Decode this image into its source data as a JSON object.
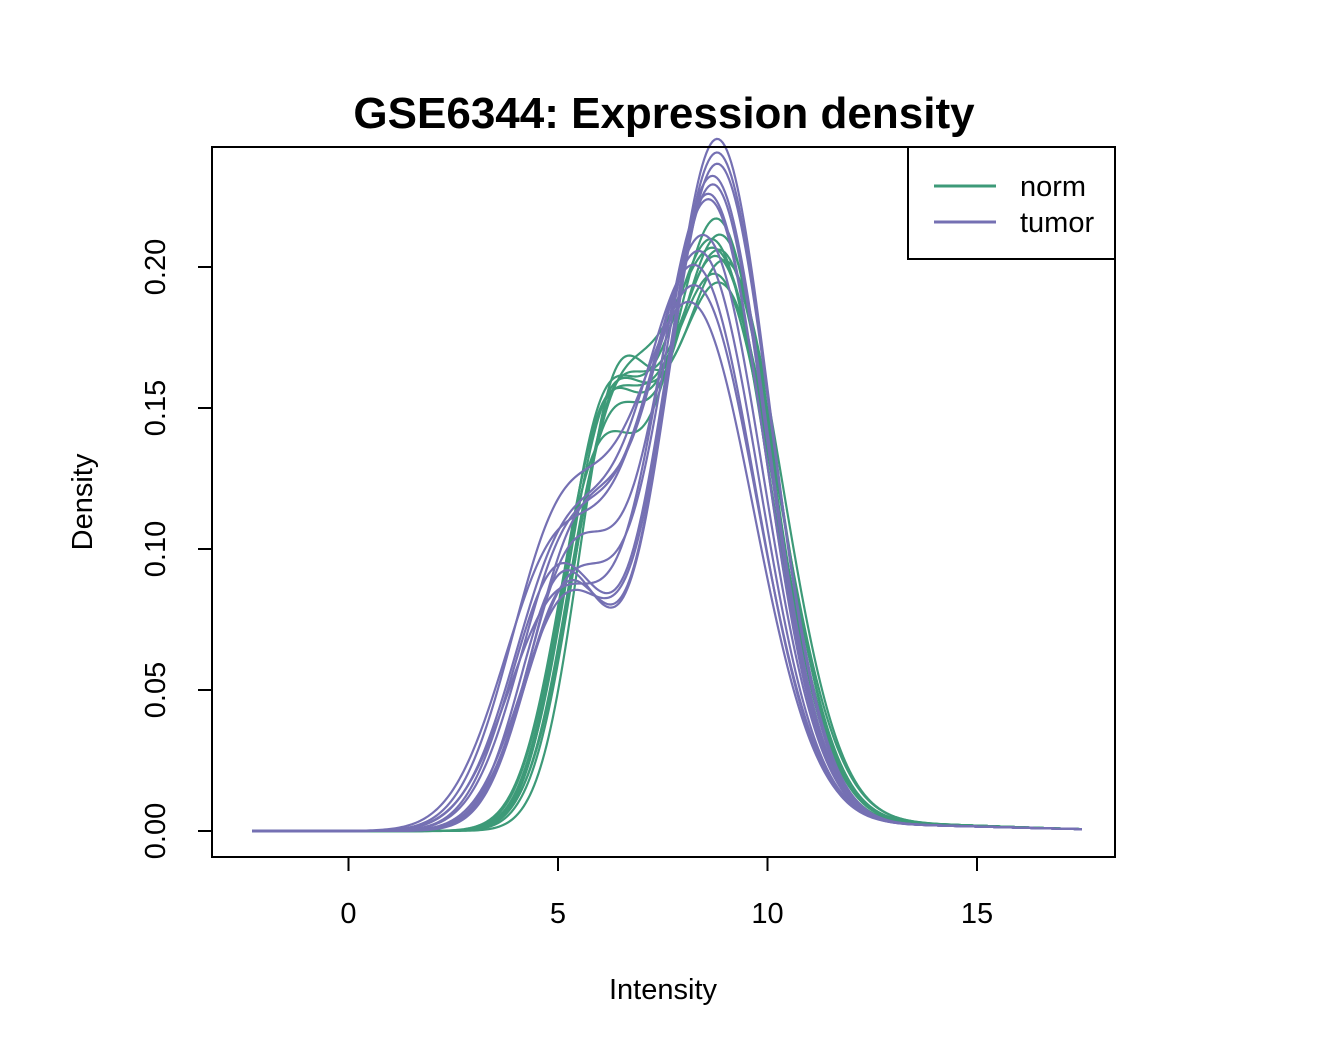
{
  "chart_data": {
    "type": "line",
    "title": "GSE6344: Expression density",
    "xlabel": "Intensity",
    "ylabel": "Density",
    "xlim": [
      -2.5,
      17.5
    ],
    "ylim": [
      0,
      0.23
    ],
    "xticks": [
      0,
      5,
      10,
      15
    ],
    "yticks": [
      0.0,
      0.05,
      0.1,
      0.15,
      0.2
    ],
    "xtick_labels": [
      "0",
      "5",
      "10",
      "15"
    ],
    "ytick_labels": [
      "0.00",
      "0.05",
      "0.10",
      "0.15",
      "0.20"
    ],
    "grid": false,
    "legend": {
      "position": "top-right",
      "entries": [
        {
          "label": "norm",
          "color": "#3d9a78"
        },
        {
          "label": "tumor",
          "color": "#7570b3"
        }
      ]
    },
    "group_colors": {
      "norm": "#3d9a78",
      "tumor": "#7570b3"
    },
    "curve_form": {
      "description": "sum of gaussian components per curve: [weight, mean, sd]",
      "x_range": [
        -2.3,
        17.5
      ]
    },
    "series": [
      {
        "group": "norm",
        "components": [
          [
            0.3,
            6.0,
            0.95
          ],
          [
            0.68,
            8.8,
            1.35
          ],
          [
            0.02,
            12.5,
            3.0
          ]
        ]
      },
      {
        "group": "norm",
        "components": [
          [
            0.29,
            6.1,
            0.95
          ],
          [
            0.69,
            8.9,
            1.32
          ],
          [
            0.02,
            12.5,
            3.0
          ]
        ]
      },
      {
        "group": "norm",
        "components": [
          [
            0.31,
            6.0,
            1.0
          ],
          [
            0.67,
            8.8,
            1.38
          ],
          [
            0.02,
            12.5,
            3.0
          ]
        ]
      },
      {
        "group": "norm",
        "components": [
          [
            0.3,
            6.2,
            0.95
          ],
          [
            0.68,
            8.9,
            1.34
          ],
          [
            0.02,
            12.5,
            3.0
          ]
        ]
      },
      {
        "group": "norm",
        "components": [
          [
            0.28,
            5.9,
            0.95
          ],
          [
            0.7,
            8.8,
            1.3
          ],
          [
            0.02,
            12.5,
            3.0
          ]
        ]
      },
      {
        "group": "norm",
        "components": [
          [
            0.3,
            6.3,
            0.9
          ],
          [
            0.68,
            9.0,
            1.36
          ],
          [
            0.02,
            12.5,
            3.0
          ]
        ]
      },
      {
        "group": "norm",
        "components": [
          [
            0.29,
            6.0,
            0.92
          ],
          [
            0.69,
            8.7,
            1.33
          ],
          [
            0.02,
            12.5,
            3.0
          ]
        ]
      },
      {
        "group": "norm",
        "components": [
          [
            0.31,
            6.1,
            0.98
          ],
          [
            0.67,
            8.9,
            1.4
          ],
          [
            0.02,
            12.5,
            3.0
          ]
        ]
      },
      {
        "group": "norm",
        "components": [
          [
            0.3,
            6.2,
            1.0
          ],
          [
            0.68,
            8.8,
            1.35
          ],
          [
            0.02,
            12.5,
            3.0
          ]
        ]
      },
      {
        "group": "tumor",
        "components": [
          [
            0.25,
            5.0,
            1.1
          ],
          [
            0.73,
            8.7,
            1.28
          ],
          [
            0.02,
            12.0,
            3.5
          ]
        ]
      },
      {
        "group": "tumor",
        "components": [
          [
            0.22,
            5.2,
            1.1
          ],
          [
            0.76,
            8.8,
            1.27
          ],
          [
            0.02,
            12.0,
            3.5
          ]
        ]
      },
      {
        "group": "tumor",
        "components": [
          [
            0.24,
            5.0,
            1.2
          ],
          [
            0.74,
            8.6,
            1.32
          ],
          [
            0.02,
            12.0,
            3.5
          ]
        ]
      },
      {
        "group": "tumor",
        "components": [
          [
            0.23,
            5.3,
            1.1
          ],
          [
            0.75,
            8.7,
            1.3
          ],
          [
            0.02,
            12.0,
            3.5
          ]
        ]
      },
      {
        "group": "tumor",
        "components": [
          [
            0.28,
            5.1,
            1.2
          ],
          [
            0.7,
            8.3,
            1.42
          ],
          [
            0.02,
            12.0,
            3.5
          ]
        ]
      },
      {
        "group": "tumor",
        "components": [
          [
            0.27,
            5.2,
            1.15
          ],
          [
            0.71,
            8.4,
            1.4
          ],
          [
            0.02,
            12.0,
            3.5
          ]
        ]
      },
      {
        "group": "tumor",
        "components": [
          [
            0.3,
            5.0,
            1.2
          ],
          [
            0.68,
            8.2,
            1.48
          ],
          [
            0.02,
            12.0,
            3.5
          ]
        ]
      },
      {
        "group": "tumor",
        "components": [
          [
            0.26,
            5.4,
            1.1
          ],
          [
            0.72,
            8.5,
            1.38
          ],
          [
            0.02,
            12.0,
            3.5
          ]
        ]
      },
      {
        "group": "tumor",
        "components": [
          [
            0.22,
            5.1,
            1.0
          ],
          [
            0.76,
            8.8,
            1.29
          ],
          [
            0.02,
            12.0,
            3.5
          ]
        ]
      },
      {
        "group": "tumor",
        "components": [
          [
            0.29,
            4.9,
            1.25
          ],
          [
            0.69,
            8.3,
            1.45
          ],
          [
            0.02,
            12.0,
            3.5
          ]
        ]
      },
      {
        "group": "tumor",
        "components": [
          [
            0.24,
            5.3,
            1.05
          ],
          [
            0.74,
            8.6,
            1.33
          ],
          [
            0.02,
            12.0,
            3.5
          ]
        ]
      },
      {
        "group": "tumor",
        "components": [
          [
            0.21,
            5.2,
            1.0
          ],
          [
            0.77,
            8.8,
            1.26
          ],
          [
            0.02,
            12.0,
            3.5
          ]
        ]
      }
    ]
  }
}
